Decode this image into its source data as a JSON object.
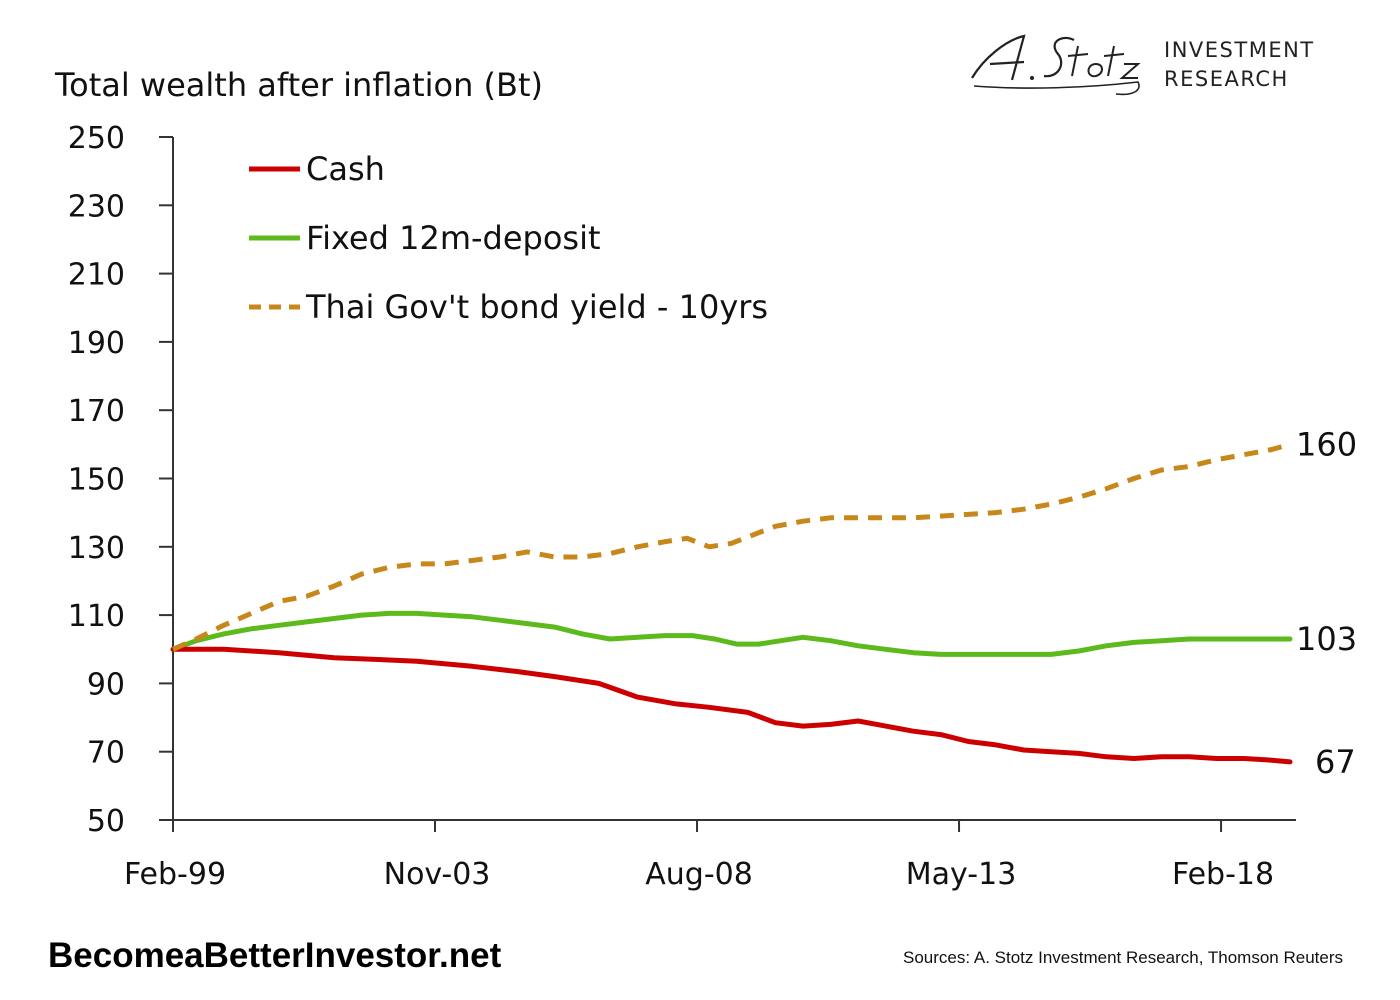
{
  "logo": {
    "script_text": "A. Stotz",
    "line1": "INVESTMENT",
    "line2": "RESEARCH"
  },
  "footer": {
    "site": "BecomeaBetterInvestor.net",
    "sources": "Sources: A. Stotz Investment Research, Thomson Reuters"
  },
  "chart_data": {
    "type": "line",
    "title": "",
    "ylabel": "Total wealth after inflation (Bt)",
    "xlabel": "",
    "ylim": [
      50,
      250
    ],
    "yticks": [
      50,
      70,
      90,
      110,
      130,
      150,
      170,
      190,
      210,
      230,
      250
    ],
    "xlim": [
      1999.08,
      2019.33
    ],
    "xticks": [
      {
        "label": "Feb-99",
        "value": 1999.08
      },
      {
        "label": "Nov-03",
        "value": 2003.83
      },
      {
        "label": "Aug-08",
        "value": 2008.58
      },
      {
        "label": "May-13",
        "value": 2013.33
      },
      {
        "label": "Feb-18",
        "value": 2018.08
      }
    ],
    "grid": false,
    "legend_position": "top-left",
    "series": [
      {
        "name": "Cash",
        "color": "#cc0000",
        "dash": "solid",
        "end_label": "67",
        "points": [
          [
            1999.08,
            100
          ],
          [
            2000,
            100
          ],
          [
            2001,
            99
          ],
          [
            2002,
            97.5
          ],
          [
            2002.8,
            97
          ],
          [
            2003.5,
            96.5
          ],
          [
            2004.5,
            95
          ],
          [
            2005.3,
            93.5
          ],
          [
            2006,
            92
          ],
          [
            2006.8,
            90
          ],
          [
            2007.5,
            86
          ],
          [
            2008.2,
            84
          ],
          [
            2008.8,
            83
          ],
          [
            2009.5,
            81.5
          ],
          [
            2010,
            78.5
          ],
          [
            2010.5,
            77.5
          ],
          [
            2011,
            78
          ],
          [
            2011.5,
            79
          ],
          [
            2012,
            77.5
          ],
          [
            2012.5,
            76
          ],
          [
            2013,
            75
          ],
          [
            2013.5,
            73
          ],
          [
            2014,
            72
          ],
          [
            2014.5,
            70.5
          ],
          [
            2015,
            70
          ],
          [
            2015.5,
            69.5
          ],
          [
            2016,
            68.5
          ],
          [
            2016.5,
            68
          ],
          [
            2017,
            68.5
          ],
          [
            2017.5,
            68.5
          ],
          [
            2018,
            68
          ],
          [
            2018.5,
            68
          ],
          [
            2019,
            67.5
          ],
          [
            2019.33,
            67
          ]
        ]
      },
      {
        "name": "Fixed 12m-deposit",
        "color": "#5cba1c",
        "dash": "solid",
        "end_label": "103",
        "points": [
          [
            1999.08,
            100
          ],
          [
            1999.5,
            102.5
          ],
          [
            2000,
            104.5
          ],
          [
            2000.5,
            106
          ],
          [
            2001,
            107
          ],
          [
            2001.5,
            108
          ],
          [
            2002,
            109
          ],
          [
            2002.5,
            110
          ],
          [
            2003,
            110.5
          ],
          [
            2003.5,
            110.5
          ],
          [
            2004,
            110
          ],
          [
            2004.5,
            109.5
          ],
          [
            2005,
            108.5
          ],
          [
            2005.5,
            107.5
          ],
          [
            2006,
            106.5
          ],
          [
            2006.5,
            104.5
          ],
          [
            2007,
            103
          ],
          [
            2007.5,
            103.5
          ],
          [
            2008,
            104
          ],
          [
            2008.5,
            104
          ],
          [
            2008.9,
            103
          ],
          [
            2009.3,
            101.5
          ],
          [
            2009.7,
            101.5
          ],
          [
            2010.1,
            102.5
          ],
          [
            2010.5,
            103.5
          ],
          [
            2011,
            102.5
          ],
          [
            2011.5,
            101
          ],
          [
            2012,
            100
          ],
          [
            2012.5,
            99
          ],
          [
            2013,
            98.5
          ],
          [
            2013.5,
            98.5
          ],
          [
            2014,
            98.5
          ],
          [
            2014.5,
            98.5
          ],
          [
            2015,
            98.5
          ],
          [
            2015.5,
            99.5
          ],
          [
            2016,
            101
          ],
          [
            2016.5,
            102
          ],
          [
            2017,
            102.5
          ],
          [
            2017.5,
            103
          ],
          [
            2018,
            103
          ],
          [
            2018.5,
            103
          ],
          [
            2019,
            103
          ],
          [
            2019.33,
            103
          ]
        ]
      },
      {
        "name": "Thai Gov't bond yield - 10yrs",
        "color": "#c8871a",
        "dash": "dashed",
        "end_label": "160",
        "points": [
          [
            1999.08,
            100
          ],
          [
            1999.5,
            103
          ],
          [
            2000,
            107
          ],
          [
            2000.5,
            110.5
          ],
          [
            2001,
            114
          ],
          [
            2001.5,
            115.5
          ],
          [
            2002,
            118.5
          ],
          [
            2002.5,
            122
          ],
          [
            2003,
            124
          ],
          [
            2003.5,
            125
          ],
          [
            2004,
            125
          ],
          [
            2004.5,
            126
          ],
          [
            2005,
            127
          ],
          [
            2005.5,
            128.5
          ],
          [
            2006,
            127
          ],
          [
            2006.5,
            127
          ],
          [
            2007,
            128
          ],
          [
            2007.5,
            130
          ],
          [
            2008,
            131.5
          ],
          [
            2008.4,
            132.5
          ],
          [
            2008.8,
            130
          ],
          [
            2009.2,
            131
          ],
          [
            2009.6,
            133.5
          ],
          [
            2010,
            136
          ],
          [
            2010.5,
            137.5
          ],
          [
            2011,
            138.5
          ],
          [
            2011.5,
            138.5
          ],
          [
            2012,
            138.5
          ],
          [
            2012.5,
            138.5
          ],
          [
            2013,
            139
          ],
          [
            2013.5,
            139.5
          ],
          [
            2014,
            140
          ],
          [
            2014.5,
            141
          ],
          [
            2015,
            142.5
          ],
          [
            2015.5,
            144.5
          ],
          [
            2016,
            147
          ],
          [
            2016.5,
            150
          ],
          [
            2017,
            152.5
          ],
          [
            2017.5,
            153.5
          ],
          [
            2018,
            155.5
          ],
          [
            2018.5,
            157
          ],
          [
            2019,
            158.5
          ],
          [
            2019.33,
            160
          ]
        ]
      }
    ]
  }
}
